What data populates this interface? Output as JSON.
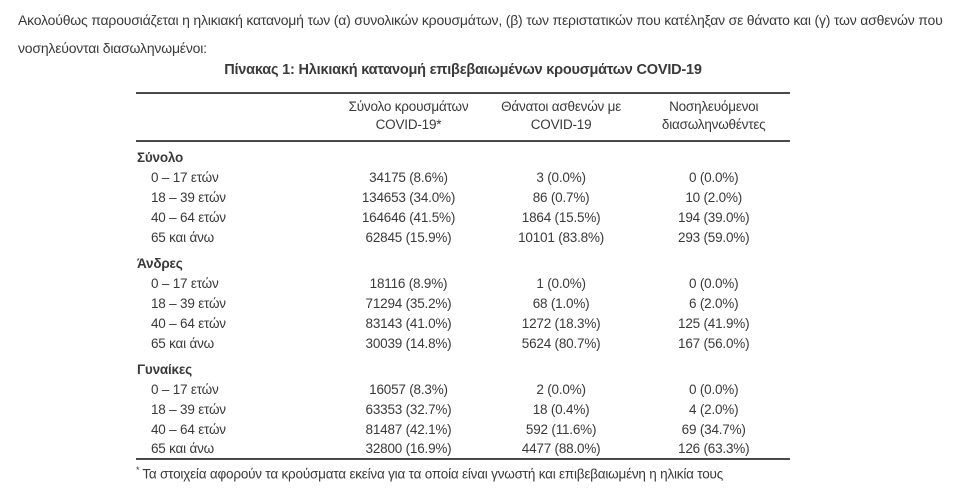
{
  "page": {
    "intro": "Ακολούθως παρουσιάζεται η ηλικιακή κατανομή των (α) συνολικών κρουσμάτων, (β) των περιστατικών που κατέληξαν σε θάνατο και (γ) των ασθενών που νοσηλεύονται διασωληνωμένοι:"
  },
  "table": {
    "title": "Πίνακας 1: Ηλικιακή κατανομή επιβεβαιωμένων κρουσμάτων COVID-19",
    "columns": [
      {
        "line1": "Σύνολο κρουσμάτων",
        "line2": "COVID-19*"
      },
      {
        "line1": "Θάνατοι ασθενών με",
        "line2": "COVID-19"
      },
      {
        "line1": "Νοσηλευόμενοι",
        "line2": "διασωληνωθέντες"
      }
    ],
    "sections": [
      {
        "label": "Σύνολο",
        "rows": [
          {
            "label": "0 – 17 ετών",
            "cases": "34175 (8.6%)",
            "deaths": "3 (0.0%)",
            "intubated": "0 (0.0%)"
          },
          {
            "label": "18 – 39 ετών",
            "cases": "134653 (34.0%)",
            "deaths": "86 (0.7%)",
            "intubated": "10 (2.0%)"
          },
          {
            "label": "40 – 64 ετών",
            "cases": "164646 (41.5%)",
            "deaths": "1864 (15.5%)",
            "intubated": "194 (39.0%)"
          },
          {
            "label": "65 και άνω",
            "cases": "62845 (15.9%)",
            "deaths": "10101 (83.8%)",
            "intubated": "293 (59.0%)"
          }
        ]
      },
      {
        "label": "Άνδρες",
        "rows": [
          {
            "label": "0 – 17 ετών",
            "cases": "18116 (8.9%)",
            "deaths": "1 (0.0%)",
            "intubated": "0 (0.0%)"
          },
          {
            "label": "18 – 39 ετών",
            "cases": "71294 (35.2%)",
            "deaths": "68 (1.0%)",
            "intubated": "6 (2.0%)"
          },
          {
            "label": "40 – 64 ετών",
            "cases": "83143 (41.0%)",
            "deaths": "1272 (18.3%)",
            "intubated": "125 (41.9%)"
          },
          {
            "label": "65 και άνω",
            "cases": "30039 (14.8%)",
            "deaths": "5624 (80.7%)",
            "intubated": "167 (56.0%)"
          }
        ]
      },
      {
        "label": "Γυναίκες",
        "rows": [
          {
            "label": "0 – 17 ετών",
            "cases": "16057 (8.3%)",
            "deaths": "2 (0.0%)",
            "intubated": "0 (0.0%)"
          },
          {
            "label": "18 – 39 ετών",
            "cases": "63353 (32.7%)",
            "deaths": "18 (0.4%)",
            "intubated": "4 (2.0%)"
          },
          {
            "label": "40 – 64 ετών",
            "cases": "81487 (42.1%)",
            "deaths": "592 (11.6%)",
            "intubated": "69 (34.7%)"
          },
          {
            "label": "65 και άνω",
            "cases": "32800 (16.9%)",
            "deaths": "4477 (88.0%)",
            "intubated": "126 (63.3%)"
          }
        ]
      }
    ],
    "footnote_marker": "*",
    "footnote": "Τα στοιχεία αφορούν τα κρούσματα εκείνα για τα οποία είναι γνωστή και επιβεβαιωμένη η ηλικία τους"
  },
  "colors": {
    "text": "#3a3a3a",
    "rule": "#4a4a4a",
    "background": "#ffffff"
  }
}
